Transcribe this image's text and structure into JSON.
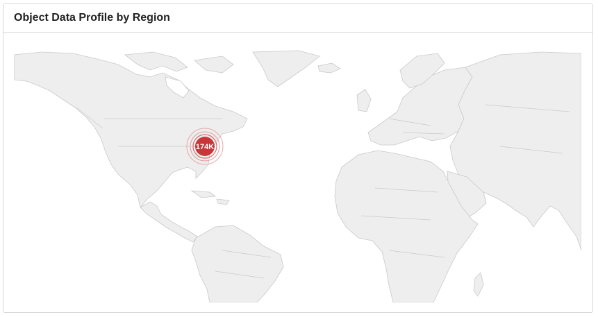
{
  "panel": {
    "title": "Object Data Profile by Region"
  },
  "map": {
    "markers": [
      {
        "label": "174K",
        "value": 174000,
        "color": "#c8363a"
      }
    ],
    "colors": {
      "land": "#eeeeee",
      "border": "#c9c9c9",
      "marker": "#c8363a"
    }
  }
}
